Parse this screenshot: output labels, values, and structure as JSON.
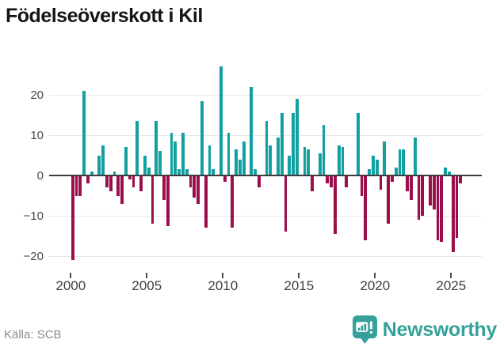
{
  "header": {
    "title": "Födelseöverskott i Kil"
  },
  "footer": {
    "source_label": "Källa: SCB",
    "brand_name": "Newsworthy"
  },
  "colors": {
    "positive_bar": "#129f9f",
    "negative_bar": "#9c0d4c",
    "brand_teal": "#35a19b",
    "grid": "#e7e7e7",
    "zero_axis": "#3d3d3d"
  },
  "chart_data": {
    "type": "bar",
    "title": "Födelseöverskott i Kil",
    "source": "Källa: SCB",
    "frequency": "quarterly",
    "start_period": "2000Q1",
    "end_period": "2025Q3",
    "x_tick_years": [
      2000,
      2005,
      2010,
      2015,
      2020,
      2025
    ],
    "y_ticks": [
      20,
      10,
      0,
      -10,
      -20
    ],
    "ylim": [
      -22,
      28
    ],
    "grid": true,
    "legend": "none",
    "values": [
      -21,
      -5,
      -5,
      21,
      -2,
      1,
      0,
      5,
      7.5,
      -3,
      -4,
      1,
      -5,
      -7,
      7,
      -1,
      -3,
      13.5,
      -4,
      5,
      2,
      -12,
      13.5,
      6,
      -6,
      -12.5,
      10.5,
      8.5,
      1.5,
      10.5,
      1.5,
      -3,
      -5.5,
      -7,
      18.5,
      -13,
      7.5,
      1.5,
      0,
      27,
      -1.5,
      10.5,
      -13,
      6.5,
      4,
      8.5,
      0,
      22,
      1.5,
      -3,
      0,
      13.5,
      7.5,
      0,
      9.5,
      15.5,
      -14,
      5,
      15.5,
      19,
      0,
      7,
      6.5,
      -4,
      0,
      5.5,
      12.5,
      -2,
      -3,
      -14.5,
      7.5,
      7,
      -3,
      0,
      0,
      15.5,
      -5,
      -16,
      1.5,
      5,
      4,
      -3.5,
      8.5,
      -12,
      -1.5,
      2,
      6.5,
      6.5,
      -4,
      -6,
      9.5,
      -11,
      -10,
      0,
      -7.5,
      -8.5,
      -16,
      -16.5,
      2,
      1,
      -19,
      -15.5,
      -2
    ]
  }
}
